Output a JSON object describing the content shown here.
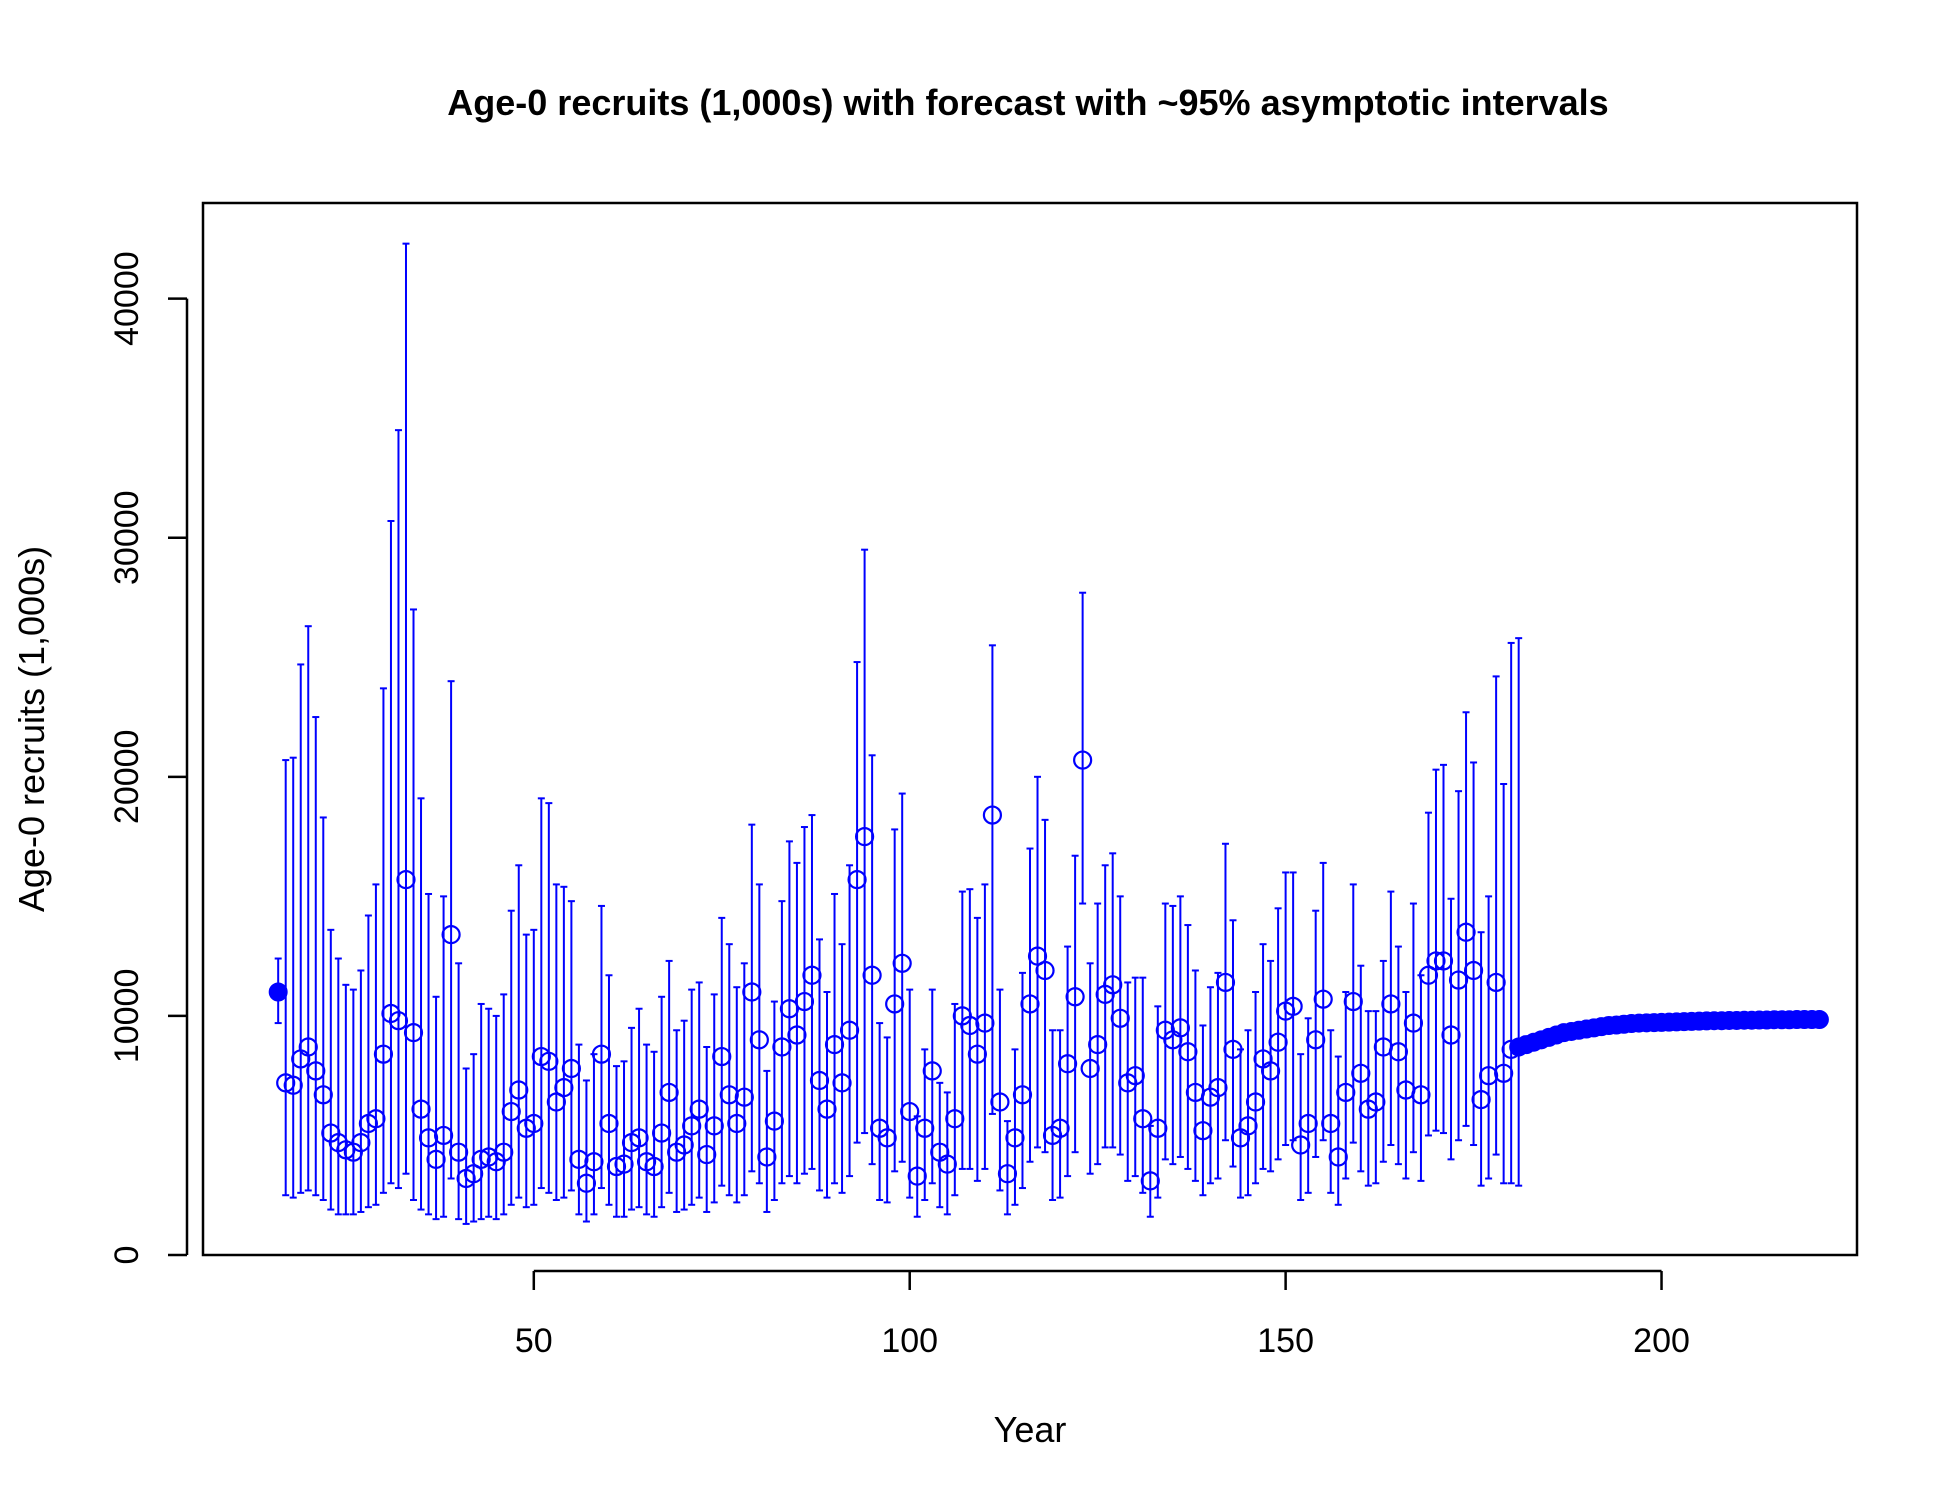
{
  "chart_data": {
    "type": "scatter",
    "title": "Age-0 recruits (1,000s) with forecast with ~95% asymptotic intervals",
    "xlabel": "Year",
    "ylabel": "Age-0 recruits (1,000s)",
    "xlim": [
      6,
      226
    ],
    "ylim": [
      0,
      44000
    ],
    "x_ticks": [
      50,
      100,
      150,
      200
    ],
    "y_ticks": [
      0,
      10000,
      20000,
      30000,
      40000
    ],
    "grid": false,
    "legend": "none",
    "color": "#0000ff",
    "virgin": {
      "x": 16,
      "value": 11000,
      "lower": 9700,
      "upper": 12400
    },
    "series": [
      {
        "role": "estimated",
        "marker": "open-circle",
        "x": [
          17,
          18,
          19,
          20,
          21,
          22,
          23,
          24,
          25,
          26,
          27,
          28,
          29,
          30,
          31,
          32,
          33,
          34,
          35,
          36,
          37,
          38,
          39,
          40,
          41,
          42,
          43,
          44,
          45,
          46,
          47,
          48,
          49,
          50,
          51,
          52,
          53,
          54,
          55,
          56,
          57,
          58,
          59,
          60,
          61,
          62,
          63,
          64,
          65,
          66,
          67,
          68,
          69,
          70,
          71,
          72,
          73,
          74,
          75,
          76,
          77,
          78,
          79,
          80,
          81,
          82,
          83,
          84,
          85,
          86,
          87,
          88,
          89,
          90,
          91,
          92,
          93,
          94,
          95,
          96,
          97,
          98,
          99,
          100,
          101,
          102,
          103,
          104,
          105,
          106,
          107,
          108,
          109,
          110,
          111,
          112,
          113,
          114,
          115,
          116,
          117,
          118,
          119,
          120,
          121,
          122,
          123,
          124,
          125,
          126,
          127,
          128,
          129,
          130,
          131,
          132,
          133,
          134,
          135,
          136,
          137,
          138,
          139,
          140,
          141,
          142,
          143,
          144,
          145,
          146,
          147,
          148,
          149,
          150,
          151,
          152,
          153,
          154,
          155,
          156,
          157,
          158,
          159,
          160,
          161,
          162,
          163,
          164,
          165,
          166,
          167,
          168,
          169,
          170,
          171,
          172,
          173,
          174,
          175,
          176,
          177,
          178,
          179,
          180
        ],
        "values": [
          7200,
          7100,
          8200,
          8700,
          7700,
          6700,
          5100,
          4700,
          4400,
          4300,
          4700,
          5500,
          5700,
          8400,
          10100,
          9800,
          15700,
          9300,
          6100,
          4900,
          4000,
          5000,
          13400,
          4300,
          3200,
          3400,
          4000,
          4100,
          3900,
          4300,
          6000,
          6900,
          5300,
          5500,
          8300,
          8100,
          6400,
          7000,
          7800,
          4000,
          3000,
          3900,
          8400,
          5500,
          3700,
          3800,
          4700,
          4900,
          3900,
          3700,
          5100,
          6800,
          4300,
          4600,
          5400,
          6100,
          4200,
          5400,
          8300,
          6700,
          5500,
          6600,
          11000,
          9000,
          4100,
          5600,
          8700,
          10300,
          9200,
          10600,
          11700,
          7300,
          6100,
          8800,
          7200,
          9400,
          15700,
          17500,
          11700,
          5300,
          4900,
          10500,
          12200,
          6000,
          3300,
          5300,
          7700,
          4300,
          3800,
          5700,
          10000,
          9600,
          8400,
          9700,
          18400,
          6400,
          3400,
          4900,
          6700,
          10500,
          12500,
          11900,
          5000,
          5300,
          8000,
          10800,
          20700,
          7800,
          8800,
          10900,
          11300,
          9900,
          7200,
          7500,
          5700,
          3100,
          5300,
          9400,
          9000,
          9500,
          8500,
          6800,
          5200,
          6600,
          7000,
          11400,
          8600,
          4900,
          5400,
          6400,
          8200,
          7700,
          8900,
          10200,
          10400,
          4600,
          5500,
          9000,
          10700,
          5500,
          4100,
          6800,
          10600,
          7600,
          6100,
          6400,
          8700,
          10500,
          8500,
          6900,
          9700,
          6700,
          11700,
          12300,
          12300,
          9200,
          11500,
          13500,
          11900,
          6500,
          7500,
          11400,
          7600,
          8600
        ],
        "lower": [
          2500,
          2400,
          2600,
          2700,
          2500,
          2300,
          1900,
          1700,
          1700,
          1700,
          1800,
          2000,
          2100,
          2600,
          3000,
          2800,
          3400,
          2300,
          1900,
          1700,
          1500,
          1600,
          3200,
          1500,
          1300,
          1400,
          1500,
          1600,
          1500,
          1700,
          2100,
          2400,
          2000,
          2100,
          2800,
          2600,
          2300,
          2400,
          2700,
          1700,
          1400,
          1700,
          2800,
          2100,
          1600,
          1600,
          1900,
          2000,
          1700,
          1600,
          2000,
          2600,
          1800,
          1900,
          2100,
          2400,
          1800,
          2200,
          2900,
          2500,
          2200,
          2500,
          3500,
          3000,
          1800,
          2300,
          3000,
          3300,
          3000,
          3400,
          3600,
          2700,
          2400,
          3000,
          2600,
          3300,
          4700,
          5100,
          3800,
          2300,
          2200,
          3500,
          3900,
          2400,
          1600,
          2300,
          3000,
          2000,
          1700,
          2500,
          3600,
          3600,
          3100,
          3600,
          5900,
          2700,
          1700,
          2100,
          2800,
          3900,
          4500,
          4300,
          2300,
          2400,
          3300,
          4300,
          14700,
          3400,
          3800,
          4500,
          4500,
          4200,
          3100,
          3300,
          2600,
          1600,
          2400,
          4000,
          3800,
          4100,
          3600,
          3100,
          2500,
          3000,
          3200,
          4800,
          3700,
          2400,
          2500,
          3000,
          3600,
          3500,
          4000,
          4600,
          4800,
          2300,
          2600,
          4100,
          4800,
          2600,
          2100,
          3200,
          4700,
          3500,
          2900,
          3000,
          3900,
          4600,
          3800,
          3200,
          4300,
          3100,
          5000,
          5200,
          5100,
          4000,
          4800,
          5400,
          4600,
          2900,
          3200,
          4200,
          3000,
          3000
        ],
        "upper": [
          20700,
          20800,
          24700,
          26300,
          22500,
          18300,
          13600,
          12400,
          11300,
          11100,
          11900,
          14200,
          15500,
          23700,
          30700,
          34500,
          42300,
          27000,
          19100,
          15100,
          10800,
          15000,
          24000,
          12200,
          7800,
          8400,
          10500,
          10300,
          10000,
          10900,
          14400,
          16300,
          13400,
          13600,
          19100,
          18900,
          15500,
          15400,
          14800,
          8800,
          7300,
          8400,
          14600,
          11700,
          7900,
          8100,
          9500,
          10300,
          8800,
          8500,
          10800,
          12300,
          9400,
          9800,
          11100,
          11400,
          8700,
          10900,
          14100,
          13000,
          11200,
          12200,
          18000,
          15500,
          7700,
          10600,
          14800,
          17300,
          16400,
          17900,
          18400,
          13200,
          11000,
          15100,
          13000,
          16300,
          24800,
          29500,
          20900,
          9700,
          9100,
          17800,
          19300,
          11100,
          5800,
          8600,
          11100,
          7200,
          6800,
          10500,
          15200,
          15300,
          14100,
          15500,
          25500,
          11100,
          5600,
          8600,
          11800,
          17000,
          20000,
          18200,
          9400,
          9400,
          12900,
          16700,
          27700,
          12200,
          14700,
          16300,
          16800,
          15000,
          11400,
          11600,
          11600,
          5400,
          10400,
          14700,
          14600,
          15000,
          13800,
          11900,
          9600,
          11200,
          11800,
          17200,
          14000,
          8600,
          9400,
          11000,
          13000,
          12300,
          14500,
          16000,
          16000,
          8400,
          9900,
          14400,
          16400,
          9400,
          8300,
          11000,
          15500,
          12100,
          10200,
          10200,
          12300,
          15200,
          12900,
          11000,
          14700,
          11700,
          18500,
          20300,
          20500,
          14900,
          19400,
          22700,
          20600,
          13500,
          15000,
          24200,
          19700,
          25600
        ],
        "cap_top": [
          20700,
          20800,
          24700,
          26300,
          22500,
          18300,
          13600,
          12400,
          11300,
          11100,
          11900,
          14200,
          15500,
          23700,
          30700,
          34500,
          42300,
          27000,
          19100,
          15100,
          10800,
          15000,
          24000,
          12200,
          7800,
          8400,
          10500,
          10300,
          10000,
          10900,
          14400,
          16300,
          13400,
          13600,
          19100,
          18900,
          15500,
          15400,
          14800,
          8800,
          7300,
          8400,
          14600,
          11700,
          7900,
          8100,
          9500,
          10300,
          8800,
          8500,
          10800,
          12300,
          9400,
          9800,
          11100,
          11400,
          8700,
          10900,
          14100,
          13000,
          11200,
          12200,
          18000,
          15500,
          7700,
          10600,
          14800,
          17300,
          16400,
          17900,
          18400,
          13200,
          11000,
          15100,
          13000,
          16300,
          24800,
          29500,
          20900,
          9700,
          9100,
          17800,
          19300,
          11100,
          5800,
          8600,
          11100,
          7200,
          6800,
          10500,
          15200,
          15300,
          14100,
          15500,
          25500,
          11100,
          5600,
          8600,
          11800,
          17000,
          20000,
          18200,
          9400,
          9400,
          12900,
          16700,
          27700,
          12200,
          14700,
          16300,
          16800,
          15000,
          11400,
          11600,
          11600,
          5400,
          10400,
          14700,
          14600,
          15000,
          13800,
          11900,
          9600,
          11200,
          11800,
          17200,
          14000,
          8600,
          9400,
          11000,
          13000,
          12300,
          14500,
          16000,
          16000,
          8400,
          9900,
          14400,
          16400,
          9400,
          8300,
          11000,
          15500,
          12100,
          10200,
          10200,
          12300,
          15200,
          12900,
          11000,
          14700,
          11700,
          18500,
          20300,
          20500,
          14900,
          19400,
          22700,
          20600,
          13500,
          15000,
          24200,
          19700,
          25600
        ]
      },
      {
        "role": "forecast",
        "marker": "filled-circle",
        "x_start": 181,
        "x_end": 221,
        "upper_last": 25800,
        "lower_last": 2900,
        "values": [
          8700,
          8800,
          8900,
          9000,
          9100,
          9200,
          9300,
          9350,
          9400,
          9450,
          9500,
          9550,
          9600,
          9620,
          9650,
          9680,
          9700,
          9710,
          9720,
          9730,
          9740,
          9750,
          9760,
          9770,
          9780,
          9790,
          9800,
          9800,
          9810,
          9810,
          9820,
          9820,
          9830,
          9830,
          9840,
          9840,
          9840,
          9850,
          9850,
          9850,
          9850
        ]
      }
    ]
  }
}
